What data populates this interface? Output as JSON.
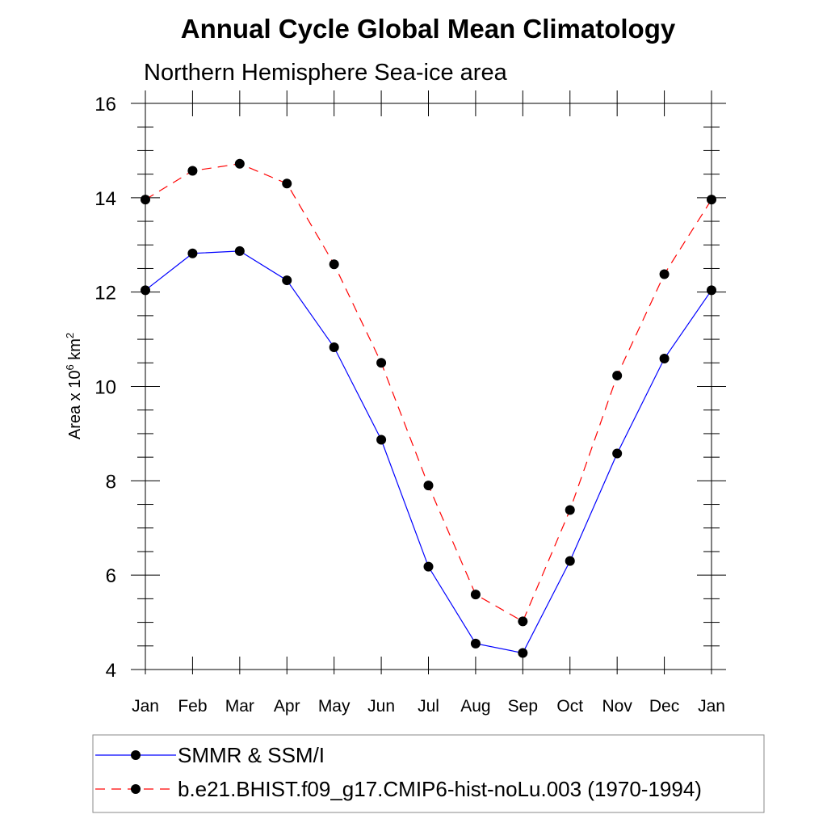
{
  "chart_data": {
    "type": "line",
    "title": "Annual Cycle Global Mean Climatology",
    "subtitle": "Northern Hemisphere Sea-ice area",
    "ylabel": {
      "prefix": "Area x 10",
      "exp1": "6",
      "mid": " km",
      "exp2": "2"
    },
    "xlabel": "",
    "categories": [
      "Jan",
      "Feb",
      "Mar",
      "Apr",
      "May",
      "Jun",
      "Jul",
      "Aug",
      "Sep",
      "Oct",
      "Nov",
      "Dec",
      "Jan"
    ],
    "ylim": [
      4,
      16
    ],
    "yticks": [
      4,
      6,
      8,
      10,
      12,
      14,
      16
    ],
    "series": [
      {
        "name": "SMMR & SSM/I",
        "color": "#0000ff",
        "dash": "solid",
        "values": [
          12.04,
          12.82,
          12.87,
          12.25,
          10.83,
          8.87,
          6.18,
          4.55,
          4.35,
          6.3,
          8.58,
          10.59,
          12.04
        ]
      },
      {
        "name": "b.e21.BHIST.f09_g17.CMIP6-hist-noLu.003 (1970-1994)",
        "color": "#ff0000",
        "dash": "dashed",
        "values": [
          13.96,
          14.57,
          14.72,
          14.3,
          12.59,
          10.5,
          7.9,
          5.59,
          5.02,
          7.38,
          10.23,
          12.38,
          13.96
        ]
      }
    ],
    "marker_color": "#000000",
    "grid": false,
    "legend_position": "bottom"
  }
}
